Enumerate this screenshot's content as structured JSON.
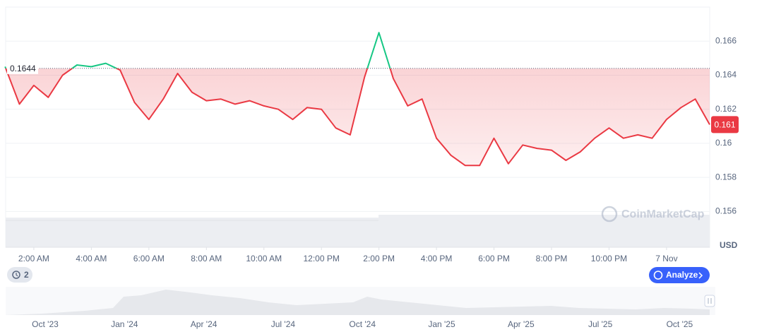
{
  "chart_data": {
    "type": "line",
    "x": [
      -1,
      -0.5,
      0,
      0.5,
      1,
      1.5,
      2,
      2.5,
      3,
      3.5,
      4,
      4.5,
      5,
      5.5,
      6,
      6.5,
      7,
      7.5,
      8,
      8.5,
      9,
      9.5,
      10,
      10.5,
      11,
      11.5,
      12,
      12.5,
      13,
      13.5,
      14,
      14.5,
      15,
      15.5,
      16,
      16.5,
      17,
      17.5,
      18,
      18.5,
      19,
      19.5,
      20,
      20.5,
      21,
      21.5,
      22,
      22.5,
      23,
      23.5
    ],
    "values": [
      0.1645,
      0.1623,
      0.1634,
      0.1627,
      0.164,
      0.1646,
      0.1645,
      0.1647,
      0.1643,
      0.1624,
      0.1614,
      0.1626,
      0.1641,
      0.163,
      0.1625,
      0.1626,
      0.1623,
      0.1625,
      0.1622,
      0.162,
      0.1614,
      0.1621,
      0.162,
      0.1609,
      0.1605,
      0.1639,
      0.1665,
      0.1638,
      0.1622,
      0.1626,
      0.1603,
      0.1593,
      0.1587,
      0.1587,
      0.1603,
      0.1588,
      0.1599,
      0.1597,
      0.1596,
      0.159,
      0.1595,
      0.1603,
      0.1609,
      0.1603,
      0.1605,
      0.1603,
      0.1614,
      0.1621,
      0.1626,
      0.1611
    ],
    "rise_color": "#16c784",
    "fall_color": "#ea3943",
    "baseline": 0.1644,
    "current_price": {
      "value": 0.1611,
      "label": "0.161"
    },
    "xlim": [
      -0.98,
      23.5
    ],
    "xticks": [
      {
        "value": 0,
        "label": "2:00 AM"
      },
      {
        "value": 2,
        "label": "4:00 AM"
      },
      {
        "value": 4,
        "label": "6:00 AM"
      },
      {
        "value": 6,
        "label": "8:00 AM"
      },
      {
        "value": 8,
        "label": "10:00 AM"
      },
      {
        "value": 10,
        "label": "12:00 PM"
      },
      {
        "value": 12,
        "label": "2:00 PM"
      },
      {
        "value": 14,
        "label": "4:00 PM"
      },
      {
        "value": 16,
        "label": "6:00 PM"
      },
      {
        "value": 18,
        "label": "8:00 PM"
      },
      {
        "value": 20,
        "label": "10:00 PM"
      },
      {
        "value": 22,
        "label": "7 Nov"
      }
    ],
    "ylim": [
      0.1539,
      0.168
    ],
    "yticks": [
      0.156,
      0.158,
      0.16,
      0.162,
      0.164,
      0.166
    ],
    "grid": true,
    "y_axis_unit": "USD",
    "watermark": "CoinMarketCap",
    "navigator_labels": [
      "Oct '23",
      "Jan '24",
      "Apr '24",
      "Jul '24",
      "Oct '24",
      "Jan '25",
      "Apr '25",
      "Jul '25",
      "Oct '25"
    ]
  },
  "ui": {
    "annotation_count": 2,
    "analyze_button": "Analyze"
  }
}
